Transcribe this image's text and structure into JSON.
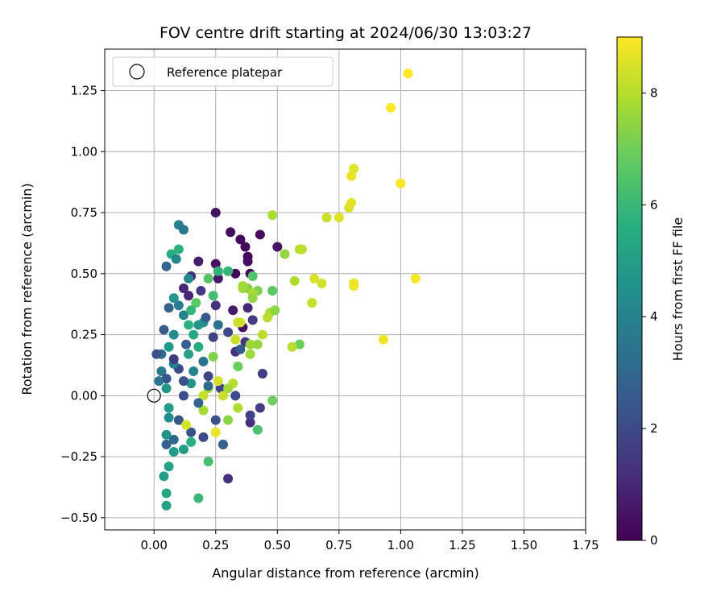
{
  "chart_data": {
    "type": "scatter",
    "title": "FOV centre drift starting at 2024/06/30 13:03:27",
    "xlabel": "Angular distance from reference (arcmin)",
    "ylabel": "Rotation from reference (arcmin)",
    "xlim": [
      -0.2,
      1.75
    ],
    "ylim": [
      -0.55,
      1.42
    ],
    "xticks": [
      0.0,
      0.25,
      0.5,
      0.75,
      1.0,
      1.25,
      1.5,
      1.75
    ],
    "xtick_labels": [
      "0.00",
      "0.25",
      "0.50",
      "0.75",
      "1.00",
      "1.25",
      "1.50",
      "1.75"
    ],
    "yticks": [
      -0.5,
      -0.25,
      0.0,
      0.25,
      0.5,
      0.75,
      1.0,
      1.25
    ],
    "ytick_labels": [
      "−0.50",
      "−0.25",
      "0.00",
      "0.25",
      "0.50",
      "0.75",
      "1.00",
      "1.25"
    ],
    "grid": true,
    "legend": {
      "placement": "top-left",
      "label": "Reference platepar"
    },
    "reference_point": {
      "x": 0.0,
      "y": 0.0
    },
    "colorbar": {
      "label": "Hours from first FF file",
      "colormap": "viridis",
      "range": [
        0,
        9
      ],
      "ticks": [
        0,
        2,
        4,
        6,
        8
      ],
      "tick_labels": [
        "0",
        "2",
        "4",
        "6",
        "8"
      ]
    },
    "points": [
      [
        0.25,
        0.75,
        0.4
      ],
      [
        0.31,
        0.67,
        0.3
      ],
      [
        0.35,
        0.64,
        0.2
      ],
      [
        0.43,
        0.66,
        0.2
      ],
      [
        0.37,
        0.61,
        0.2
      ],
      [
        0.5,
        0.61,
        0.5
      ],
      [
        0.38,
        0.57,
        0.2
      ],
      [
        0.38,
        0.55,
        0.3
      ],
      [
        0.39,
        0.5,
        0.2
      ],
      [
        0.33,
        0.5,
        0.2
      ],
      [
        0.25,
        0.54,
        0.4
      ],
      [
        0.26,
        0.48,
        0.6
      ],
      [
        0.18,
        0.55,
        0.7
      ],
      [
        0.12,
        0.44,
        1.0
      ],
      [
        0.15,
        0.49,
        1.2
      ],
      [
        0.14,
        0.41,
        1.0
      ],
      [
        0.19,
        0.43,
        1.5
      ],
      [
        0.25,
        0.37,
        1.3
      ],
      [
        0.32,
        0.35,
        0.7
      ],
      [
        0.38,
        0.36,
        1.0
      ],
      [
        0.36,
        0.28,
        0.4
      ],
      [
        0.33,
        0.18,
        1.2
      ],
      [
        0.37,
        0.22,
        1.4
      ],
      [
        0.44,
        0.09,
        1.6
      ],
      [
        0.4,
        0.31,
        1.5
      ],
      [
        0.3,
        0.26,
        2.0
      ],
      [
        0.35,
        0.19,
        2.6
      ],
      [
        0.27,
        0.03,
        1.8
      ],
      [
        0.22,
        0.08,
        1.9
      ],
      [
        0.25,
        -0.1,
        2.2
      ],
      [
        0.28,
        -0.2,
        1.3
      ],
      [
        0.3,
        -0.34,
        1.2
      ],
      [
        0.39,
        -0.11,
        1.2
      ],
      [
        0.43,
        -0.05,
        1.6
      ],
      [
        0.39,
        -0.08,
        1.8
      ],
      [
        0.33,
        0.0,
        2.0
      ],
      [
        0.06,
        0.36,
        2.8
      ],
      [
        0.04,
        0.27,
        2.6
      ],
      [
        0.03,
        0.17,
        3.2
      ],
      [
        0.03,
        0.1,
        3.6
      ],
      [
        0.05,
        0.07,
        2.4
      ],
      [
        0.1,
        0.11,
        2.0
      ],
      [
        0.12,
        0.0,
        2.1
      ],
      [
        0.1,
        -0.1,
        2.4
      ],
      [
        0.05,
        -0.2,
        2.7
      ],
      [
        0.08,
        -0.18,
        3.0
      ],
      [
        0.15,
        -0.15,
        2.3
      ],
      [
        0.2,
        -0.17,
        2.0
      ],
      [
        0.07,
        0.58,
        5.5
      ],
      [
        0.05,
        0.53,
        3.0
      ],
      [
        0.09,
        0.56,
        4.1
      ],
      [
        0.1,
        0.7,
        4.0
      ],
      [
        0.12,
        0.68,
        3.6
      ],
      [
        0.1,
        0.6,
        5.7
      ],
      [
        0.14,
        0.48,
        4.2
      ],
      [
        0.08,
        0.4,
        4.7
      ],
      [
        0.1,
        0.37,
        3.7
      ],
      [
        0.12,
        0.33,
        4.0
      ],
      [
        0.06,
        0.2,
        4.8
      ],
      [
        0.08,
        0.25,
        4.3
      ],
      [
        0.14,
        0.29,
        5.7
      ],
      [
        0.16,
        0.25,
        5.4
      ],
      [
        0.14,
        0.17,
        5.1
      ],
      [
        0.18,
        0.2,
        5.5
      ],
      [
        0.2,
        0.3,
        4.4
      ],
      [
        0.24,
        0.41,
        6.2
      ],
      [
        0.26,
        0.51,
        5.8
      ],
      [
        0.3,
        0.51,
        5.9
      ],
      [
        0.22,
        0.48,
        6.5
      ],
      [
        0.17,
        0.38,
        6.7
      ],
      [
        0.15,
        0.05,
        4.6
      ],
      [
        0.05,
        0.03,
        4.7
      ],
      [
        0.06,
        -0.05,
        4.9
      ],
      [
        0.06,
        -0.09,
        4.4
      ],
      [
        0.05,
        -0.16,
        4.5
      ],
      [
        0.08,
        -0.23,
        4.8
      ],
      [
        0.06,
        -0.29,
        5.2
      ],
      [
        0.04,
        -0.33,
        5.0
      ],
      [
        0.05,
        -0.4,
        5.3
      ],
      [
        0.05,
        -0.45,
        5.1
      ],
      [
        0.15,
        -0.19,
        5.6
      ],
      [
        0.12,
        -0.22,
        5.0
      ],
      [
        0.18,
        -0.42,
        6.0
      ],
      [
        0.22,
        -0.27,
        6.3
      ],
      [
        0.34,
        0.12,
        6.9
      ],
      [
        0.4,
        0.49,
        6.5
      ],
      [
        0.42,
        0.43,
        7.2
      ],
      [
        0.38,
        0.44,
        7.3
      ],
      [
        0.36,
        0.44,
        7.6
      ],
      [
        0.4,
        0.42,
        7.8
      ],
      [
        0.4,
        0.4,
        7.5
      ],
      [
        0.47,
        0.34,
        7.8
      ],
      [
        0.49,
        0.35,
        7.4
      ],
      [
        0.46,
        0.32,
        8.0
      ],
      [
        0.44,
        0.25,
        8.1
      ],
      [
        0.42,
        0.21,
        7.5
      ],
      [
        0.39,
        0.21,
        7.6
      ],
      [
        0.39,
        0.17,
        7.7
      ],
      [
        0.33,
        0.23,
        8.3
      ],
      [
        0.35,
        0.3,
        8.4
      ],
      [
        0.48,
        0.43,
        6.7
      ],
      [
        0.48,
        0.74,
        7.8
      ],
      [
        0.53,
        0.58,
        7.5
      ],
      [
        0.57,
        0.47,
        7.9
      ],
      [
        0.59,
        0.6,
        8.0
      ],
      [
        0.6,
        0.6,
        8.1
      ],
      [
        0.59,
        0.21,
        6.9
      ],
      [
        0.56,
        0.2,
        8.0
      ],
      [
        0.64,
        0.38,
        8.2
      ],
      [
        0.65,
        0.48,
        8.5
      ],
      [
        0.68,
        0.46,
        8.4
      ],
      [
        0.7,
        0.73,
        8.3
      ],
      [
        0.75,
        0.73,
        8.6
      ],
      [
        0.79,
        0.77,
        8.5
      ],
      [
        0.8,
        0.79,
        8.6
      ],
      [
        0.8,
        0.9,
        8.7
      ],
      [
        0.81,
        0.93,
        8.6
      ],
      [
        0.81,
        0.46,
        8.7
      ],
      [
        0.81,
        0.45,
        8.8
      ],
      [
        0.93,
        0.23,
        8.8
      ],
      [
        1.0,
        0.87,
        8.9
      ],
      [
        1.03,
        1.32,
        9.0
      ],
      [
        0.96,
        1.18,
        9.0
      ],
      [
        1.06,
        0.48,
        8.9
      ],
      [
        0.28,
        0.0,
        8.3
      ],
      [
        0.22,
        0.03,
        7.8
      ],
      [
        0.2,
        -0.06,
        7.8
      ],
      [
        0.13,
        -0.12,
        8.4
      ],
      [
        0.25,
        -0.15,
        8.7
      ],
      [
        0.3,
        -0.1,
        7.4
      ],
      [
        0.34,
        -0.05,
        7.9
      ],
      [
        0.32,
        0.05,
        8.0
      ],
      [
        0.48,
        -0.02,
        6.9
      ],
      [
        0.42,
        -0.14,
        6.4
      ],
      [
        0.24,
        0.16,
        7.3
      ],
      [
        0.2,
        0.0,
        8.2
      ],
      [
        0.26,
        0.06,
        8.4
      ],
      [
        0.3,
        0.03,
        7.7
      ],
      [
        0.36,
        0.45,
        7.7
      ],
      [
        0.34,
        0.3,
        8.3
      ],
      [
        0.15,
        0.35,
        5.9
      ],
      [
        0.18,
        0.29,
        4.6
      ],
      [
        0.16,
        0.1,
        4.1
      ],
      [
        0.08,
        0.13,
        3.9
      ],
      [
        0.2,
        0.14,
        3.4
      ],
      [
        0.22,
        0.04,
        3.1
      ],
      [
        0.18,
        -0.03,
        2.9
      ],
      [
        0.12,
        0.06,
        2.2
      ],
      [
        0.24,
        0.24,
        1.8
      ],
      [
        0.21,
        0.32,
        2.5
      ],
      [
        0.26,
        0.29,
        3.3
      ],
      [
        0.13,
        0.21,
        2.7
      ],
      [
        0.08,
        0.15,
        1.6
      ],
      [
        0.02,
        0.06,
        3.5
      ],
      [
        0.01,
        0.17,
        2.2
      ],
      [
        0.28,
        -0.2,
        2.8
      ]
    ]
  }
}
